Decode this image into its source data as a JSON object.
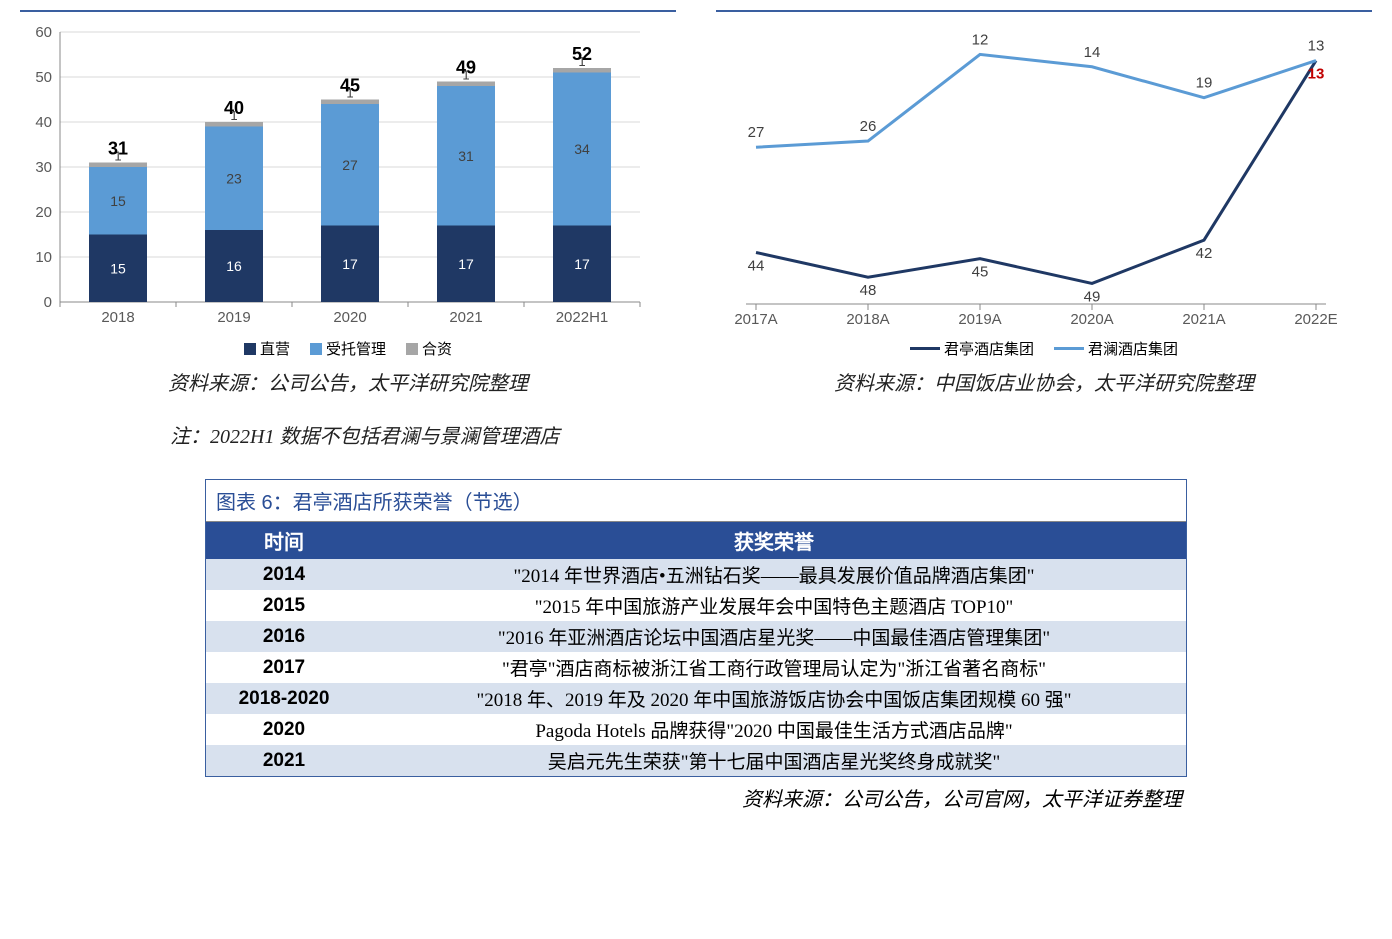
{
  "bar_chart": {
    "type": "stacked-bar",
    "categories": [
      "2018",
      "2019",
      "2020",
      "2021",
      "2022H1"
    ],
    "series": [
      {
        "name": "直营",
        "color": "#1f3864",
        "values": [
          15,
          16,
          17,
          17,
          17
        ]
      },
      {
        "name": "受托管理",
        "color": "#5b9bd5",
        "values": [
          15,
          23,
          27,
          31,
          34
        ]
      },
      {
        "name": "合资",
        "color": "#a6a6a6",
        "values": [
          1,
          1,
          1,
          1,
          1
        ]
      }
    ],
    "totals": [
      31,
      40,
      45,
      49,
      52
    ],
    "ylim": [
      0,
      60
    ],
    "ytick_step": 10,
    "grid_color": "#d9d9d9",
    "axis_color": "#888888",
    "label_fontsize": 15,
    "source": "资料来源：公司公告，太平洋研究院整理",
    "note": "注：2022H1 数据不包括君澜与景澜管理酒店"
  },
  "line_chart": {
    "type": "line",
    "categories": [
      "2017A",
      "2018A",
      "2019A",
      "2020A",
      "2021A",
      "2022E"
    ],
    "series": [
      {
        "name": "君亭酒店集团",
        "color": "#1f3864",
        "values": [
          44,
          48,
          45,
          49,
          42,
          13
        ],
        "last_label_color": "#c00000"
      },
      {
        "name": "君澜酒店集团",
        "color": "#5b9bd5",
        "values": [
          27,
          26,
          12,
          14,
          19,
          13
        ]
      }
    ],
    "grid_color": "#d9d9d9",
    "axis_color": "#888888",
    "label_fontsize": 15,
    "source": "资料来源：中国饭店业协会，太平洋研究院整理"
  },
  "honors_table": {
    "title": "图表 6：君亭酒店所获荣誉（节选）",
    "columns": [
      "时间",
      "获奖荣誉"
    ],
    "rows": [
      [
        "2014",
        "\"2014 年世界酒店•五洲钻石奖——最具发展价值品牌酒店集团\""
      ],
      [
        "2015",
        "\"2015 年中国旅游产业发展年会中国特色主题酒店 TOP10\""
      ],
      [
        "2016",
        "\"2016 年亚洲酒店论坛中国酒店星光奖——中国最佳酒店管理集团\""
      ],
      [
        "2017",
        "\"君亭\"酒店商标被浙江省工商行政管理局认定为\"浙江省著名商标\""
      ],
      [
        "2018-2020",
        "\"2018 年、2019 年及 2020 年中国旅游饭店协会中国饭店集团规模 60 强\""
      ],
      [
        "2020",
        "Pagoda Hotels 品牌获得\"2020 中国最佳生活方式酒店品牌\""
      ],
      [
        "2021",
        "吴启元先生荣获\"第十七届中国酒店星光奖终身成就奖\""
      ]
    ],
    "header_bg": "#2a4e96",
    "header_fg": "#ffffff",
    "row_odd_bg": "#d8e1ee",
    "row_even_bg": "#ffffff",
    "source": "资料来源：公司公告，公司官网，太平洋证券整理"
  }
}
